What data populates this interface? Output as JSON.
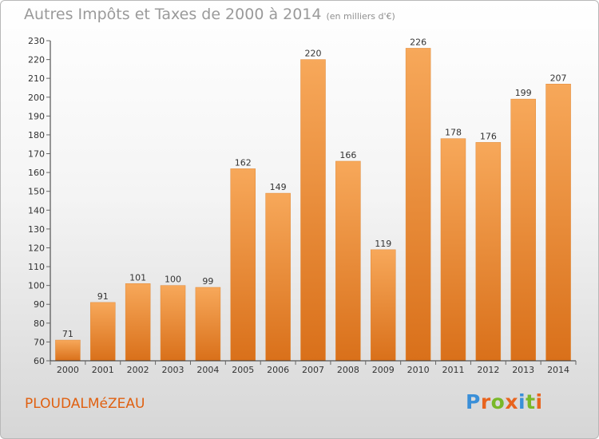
{
  "title": "Autres Impôts et Taxes de 2000 à 2014",
  "unit_note": "(en milliers d'€)",
  "commune": "PLOUDALMéZEAU",
  "logo": {
    "text": "Proxiti",
    "letter_colors": [
      "#3a8fd8",
      "#e8641e",
      "#79b829",
      "#e8641e",
      "#3a8fd8",
      "#79b829",
      "#e8641e"
    ]
  },
  "colors": {
    "bar_light": "#f7a85a",
    "bar_dark": "#d9701a",
    "axis": "#333333",
    "grid_tick": "#666666",
    "label": "#333333"
  },
  "chart_data": {
    "type": "bar",
    "title": "Autres Impôts et Taxes de 2000 à 2014",
    "subtitle": "(en milliers d'€)",
    "xlabel": "",
    "ylabel": "",
    "categories": [
      "2000",
      "2001",
      "2002",
      "2003",
      "2004",
      "2005",
      "2006",
      "2007",
      "2008",
      "2009",
      "2010",
      "2011",
      "2012",
      "2013",
      "2014"
    ],
    "values": [
      71,
      91,
      101,
      100,
      99,
      162,
      149,
      220,
      166,
      119,
      226,
      178,
      176,
      199,
      207
    ],
    "ylim": [
      60,
      230
    ],
    "yticks": [
      60,
      70,
      80,
      90,
      100,
      110,
      120,
      130,
      140,
      150,
      160,
      170,
      180,
      190,
      200,
      210,
      220,
      230
    ],
    "grid": false,
    "legend": "none"
  }
}
